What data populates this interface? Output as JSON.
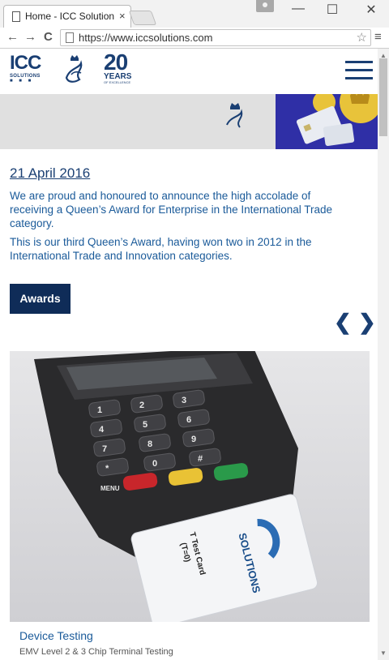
{
  "browser": {
    "tab_title": "Home - ICC Solution",
    "tab_close": "×",
    "url": "https://www.iccsolutions.com",
    "back": "←",
    "forward": "→",
    "reload": "C",
    "star": "☆",
    "menu": "≡",
    "minimize": "—",
    "maximize": "☐",
    "close": "✕"
  },
  "header": {
    "logo_text": "ICC",
    "logo_sub": "SOLUTIONS",
    "logo_dots": "■ ■ ■",
    "anniversary_number": "20",
    "anniversary_label": "YEARS",
    "anniversary_sub": "OF EXCELLENCE"
  },
  "news": {
    "date": "21 April 2016",
    "paragraph1": "We are proud and honoured to announce the high accolade of receiving a Queen’s Award for Enterprise in the International Trade category.",
    "paragraph2": "This is our third Queen’s Award, having won two in 2012 in the International Trade and Innovation categories.",
    "button_label": "Awards"
  },
  "carousel": {
    "prev": "❮",
    "next": "❯"
  },
  "card": {
    "title": "Device Testing",
    "subtitle": "EMV Level 2 & 3 Chip Terminal Testing",
    "card_label": "SOLUTIONS",
    "card_text": "T Test Card",
    "card_text2": "(T=0)",
    "keys": [
      "1",
      "2",
      "3",
      "4",
      "5",
      "6",
      "7",
      "8",
      "9",
      "*",
      "0",
      "#"
    ],
    "key_menu": "MENU"
  },
  "colors": {
    "brand": "#1a3f73",
    "link": "#1a5a99",
    "button": "#0f2c58"
  }
}
